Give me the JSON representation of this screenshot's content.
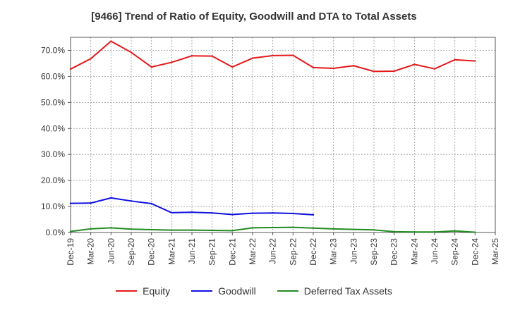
{
  "chart_data": {
    "type": "line",
    "title": "[9466]  Trend of Ratio of Equity, Goodwill and DTA to Total Assets",
    "xlabel": "",
    "ylabel": "",
    "ylim": [
      0,
      75
    ],
    "yticks": [
      0,
      10,
      20,
      30,
      40,
      50,
      60,
      70
    ],
    "ytick_labels": [
      "0.0%",
      "10.0%",
      "20.0%",
      "30.0%",
      "40.0%",
      "50.0%",
      "60.0%",
      "70.0%"
    ],
    "grid": true,
    "legend_position": "bottom",
    "x": [
      "Dec-19",
      "Mar-20",
      "Jun-20",
      "Sep-20",
      "Dec-20",
      "Mar-21",
      "Jun-21",
      "Sep-21",
      "Dec-21",
      "Mar-22",
      "Jun-22",
      "Sep-22",
      "Dec-22",
      "Mar-23",
      "Jun-23",
      "Sep-23",
      "Dec-23",
      "Mar-24",
      "Jun-24",
      "Sep-24",
      "Dec-24",
      "Mar-25"
    ],
    "series": [
      {
        "name": "Equity",
        "color": "#e31a1c",
        "values": [
          62.8,
          66.8,
          73.5,
          69.2,
          63.6,
          65.4,
          67.9,
          67.8,
          63.6,
          67.0,
          68.0,
          68.1,
          63.4,
          63.1,
          64.1,
          61.9,
          62.0,
          64.6,
          62.9,
          66.4,
          65.9,
          null
        ]
      },
      {
        "name": "Goodwill",
        "color": "#1010e0",
        "values": [
          11.2,
          11.3,
          13.3,
          12.1,
          11.1,
          7.6,
          7.8,
          7.5,
          6.9,
          7.4,
          7.5,
          7.3,
          6.8,
          null,
          null,
          null,
          null,
          null,
          null,
          null,
          null,
          null
        ]
      },
      {
        "name": "Deferred Tax Assets",
        "color": "#228b22",
        "values": [
          0.4,
          1.4,
          1.8,
          1.3,
          1.1,
          0.9,
          0.9,
          0.8,
          0.7,
          1.8,
          1.9,
          2.0,
          1.7,
          1.4,
          1.2,
          1.0,
          0.3,
          0.2,
          0.2,
          0.6,
          0.1,
          null
        ]
      }
    ]
  }
}
